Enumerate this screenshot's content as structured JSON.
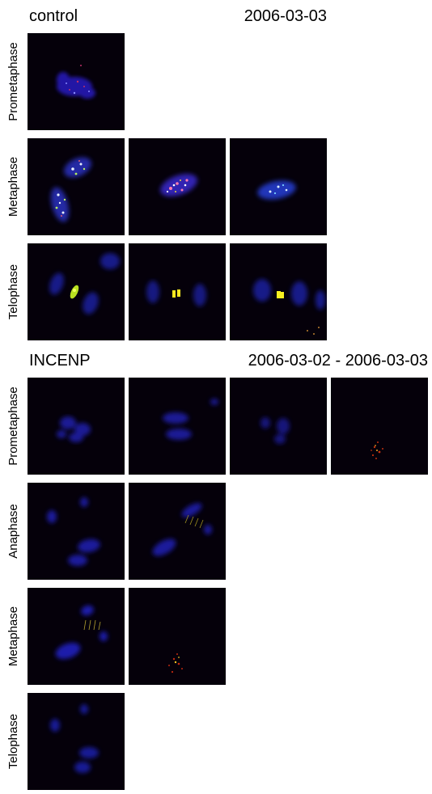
{
  "groups": [
    {
      "title": "control",
      "date": "2006-03-03",
      "rows": [
        {
          "label": "Prometaphase",
          "panels": [
            {
              "channels": [
                "blue-chromosomes",
                "red-speckles"
              ]
            }
          ]
        },
        {
          "label": "Metaphase",
          "panels": [
            {
              "channels": [
                "blue-chromosomes",
                "white-speckles",
                "green-speckles"
              ]
            },
            {
              "channels": [
                "blue-chromosomes",
                "pink-speckles",
                "white-speckles"
              ]
            },
            {
              "channels": [
                "blue-chromosomes",
                "white-speckles"
              ]
            }
          ]
        },
        {
          "label": "Telophase",
          "panels": [
            {
              "channels": [
                "blue-chromosomes",
                "yellow-midbody"
              ]
            },
            {
              "channels": [
                "blue-chromosomes",
                "yellow-midbody"
              ]
            },
            {
              "channels": [
                "blue-chromosomes",
                "yellow-midbody"
              ]
            }
          ]
        }
      ]
    },
    {
      "title": "INCENP",
      "date": "2006-03-02 - 2006-03-03",
      "rows": [
        {
          "label": "Prometaphase",
          "panels": [
            {
              "channels": [
                "blue-chromosomes"
              ]
            },
            {
              "channels": [
                "blue-chromosomes"
              ]
            },
            {
              "channels": [
                "blue-chromosomes"
              ]
            },
            {
              "channels": [
                "red-speckles"
              ]
            }
          ]
        },
        {
          "label": "Anaphase",
          "panels": [
            {
              "channels": [
                "blue-chromosomes"
              ]
            },
            {
              "channels": [
                "blue-chromosomes",
                "yellow-streaks"
              ]
            }
          ]
        },
        {
          "label": "Metaphase",
          "panels": [
            {
              "channels": [
                "blue-chromosomes",
                "yellow-streaks"
              ]
            },
            {
              "channels": [
                "red-speckles"
              ]
            }
          ]
        },
        {
          "label": "Telophase",
          "panels": [
            {
              "channels": [
                "blue-chromosomes"
              ]
            }
          ]
        }
      ]
    }
  ]
}
